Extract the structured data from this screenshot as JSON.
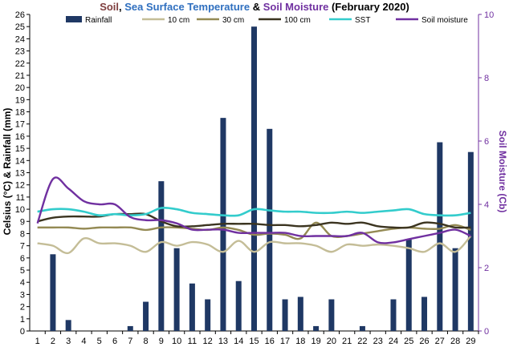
{
  "chart_data": {
    "type": "bar",
    "title_parts": [
      {
        "text": "Soil",
        "color": "#7f3f3f"
      },
      {
        "text": ", ",
        "color": "#000000"
      },
      {
        "text": "Sea Surface Temperature",
        "color": "#2f6fbf"
      },
      {
        "text": " & ",
        "color": "#000000"
      },
      {
        "text": "Soil Moisture",
        "color": "#7030a0"
      },
      {
        "text": " (February 2020)",
        "color": "#000000"
      }
    ],
    "ylabel": "Celsius (°C) & Rainfall (mm)",
    "y2label": "Soil Moisture (Cb)",
    "ylim": [
      0,
      26
    ],
    "y2lim": [
      0,
      10
    ],
    "y_ticks": [
      "0",
      "1",
      "2",
      "3",
      "4",
      "5",
      "6",
      "7",
      "8",
      "9",
      "10",
      "11",
      "12",
      "13",
      "14",
      "15",
      "16",
      "17",
      "18",
      "19",
      "20",
      "21",
      "22",
      "23",
      "24",
      "25",
      "26"
    ],
    "y2_ticks": [
      "0",
      "2",
      "4",
      "6",
      "8",
      "10"
    ],
    "categories": [
      "1",
      "2",
      "3",
      "4",
      "5",
      "6",
      "7",
      "8",
      "9",
      "10",
      "11",
      "12",
      "13",
      "14",
      "15",
      "16",
      "17",
      "18",
      "19",
      "20",
      "21",
      "22",
      "23",
      "24",
      "25",
      "26",
      "27",
      "28",
      "29"
    ],
    "series": [
      {
        "name": "Rainfall",
        "kind": "bar",
        "axis": "left",
        "color": "#1f3864",
        "values": [
          0,
          6.3,
          0.9,
          0,
          0,
          0,
          0.4,
          2.4,
          12.3,
          6.8,
          3.9,
          2.6,
          17.5,
          4.1,
          25,
          16.6,
          2.6,
          2.8,
          0.4,
          2.6,
          0,
          0.4,
          0,
          2.6,
          7.5,
          2.8,
          15.5,
          6.8,
          14.7
        ]
      },
      {
        "name": "10 cm",
        "kind": "line",
        "axis": "left",
        "color": "#c4bd97",
        "values": [
          7.2,
          7.0,
          6.4,
          7.6,
          7.2,
          7.2,
          7.0,
          6.5,
          7.3,
          7.0,
          7.3,
          7.1,
          6.5,
          7.4,
          6.5,
          7.3,
          7.2,
          7.2,
          7.0,
          6.5,
          7.1,
          7.0,
          7.1,
          7.0,
          6.8,
          6.5,
          7.2,
          6.5,
          7.8
        ]
      },
      {
        "name": "30 cm",
        "kind": "line",
        "axis": "left",
        "color": "#948a54",
        "values": [
          8.5,
          8.5,
          8.5,
          8.4,
          8.5,
          8.5,
          8.5,
          8.3,
          8.5,
          8.5,
          8.4,
          8.3,
          8.5,
          8.3,
          7.9,
          8.0,
          7.9,
          7.6,
          8.9,
          7.8,
          7.8,
          8.0,
          8.2,
          8.4,
          8.5,
          8.4,
          8.4,
          8.7,
          8.3
        ]
      },
      {
        "name": "100 cm",
        "kind": "line",
        "axis": "left",
        "color": "#3b3420",
        "values": [
          9.0,
          9.3,
          9.4,
          9.4,
          9.4,
          9.6,
          9.6,
          9.6,
          9.0,
          8.6,
          8.6,
          8.7,
          8.8,
          8.8,
          8.8,
          8.7,
          8.7,
          8.6,
          8.7,
          8.9,
          8.8,
          8.9,
          8.6,
          8.5,
          8.5,
          8.9,
          8.8,
          8.5,
          8.5
        ]
      },
      {
        "name": "SST",
        "kind": "line",
        "axis": "left",
        "color": "#33cccc",
        "values": [
          9.8,
          10.0,
          10.0,
          9.8,
          9.5,
          9.6,
          9.5,
          9.6,
          10.1,
          10.0,
          9.7,
          9.6,
          9.5,
          9.5,
          10.0,
          9.9,
          9.8,
          9.8,
          9.7,
          9.7,
          9.8,
          9.7,
          9.8,
          9.9,
          10.0,
          9.6,
          9.5,
          9.5,
          9.7
        ]
      },
      {
        "name": "Soil moisture",
        "kind": "line",
        "axis": "right",
        "color": "#7030a0",
        "values": [
          3.4,
          4.8,
          4.5,
          4.1,
          4.0,
          4.0,
          3.6,
          3.5,
          3.5,
          3.4,
          3.2,
          3.2,
          3.2,
          3.1,
          3.1,
          3.1,
          3.1,
          3.0,
          3.0,
          3.0,
          3.0,
          3.1,
          2.8,
          2.8,
          2.9,
          3.0,
          3.1,
          3.2,
          3.0
        ]
      }
    ],
    "legend_position": "top"
  }
}
